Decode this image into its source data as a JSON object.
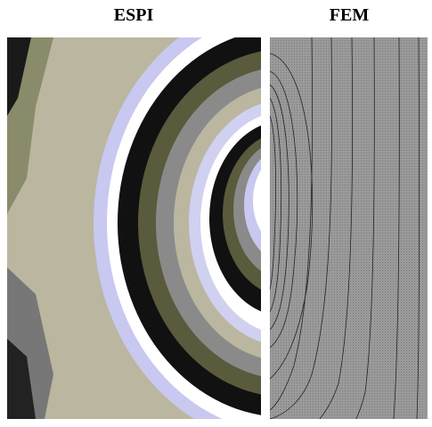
{
  "panels": [
    {
      "title": "ESPI"
    },
    {
      "title": "FEM"
    }
  ]
}
